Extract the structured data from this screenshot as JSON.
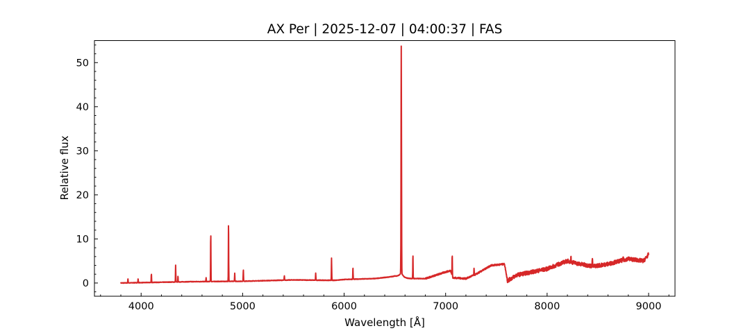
{
  "chart_data": {
    "type": "line",
    "title": "AX Per | 2025-12-07 | 04:00:37 | FAS",
    "xlabel": "Wavelength [Å]",
    "ylabel": "Relative flux",
    "xlim": [
      3540,
      9260
    ],
    "ylim": [
      -3,
      55
    ],
    "xticks": [
      4000,
      5000,
      6000,
      7000,
      8000,
      9000
    ],
    "yticks": [
      0,
      10,
      20,
      30,
      40,
      50
    ],
    "x_minor_step": 200,
    "y_minor_step": 2,
    "grid": false,
    "legend": "none",
    "series": [
      {
        "name": "spectrum",
        "color": "#d62728",
        "continuum": [
          [
            3800,
            0
          ],
          [
            4500,
            0.3
          ],
          [
            5000,
            0.4
          ],
          [
            5500,
            0.7
          ],
          [
            5900,
            0.6
          ],
          [
            6000,
            0.8
          ],
          [
            6300,
            1.0
          ],
          [
            6500,
            1.5
          ],
          [
            6600,
            1.0
          ],
          [
            6800,
            1.0
          ],
          [
            7000,
            2.5
          ],
          [
            7050,
            2.8
          ],
          [
            7070,
            1.2
          ],
          [
            7200,
            1.0
          ],
          [
            7300,
            2.0
          ],
          [
            7450,
            4.0
          ],
          [
            7580,
            4.3
          ],
          [
            7610,
            0.5
          ],
          [
            7700,
            1.8
          ],
          [
            8000,
            3.2
          ],
          [
            8150,
            4.6
          ],
          [
            8200,
            5.0
          ],
          [
            8300,
            4.4
          ],
          [
            8450,
            3.8
          ],
          [
            8600,
            4.3
          ],
          [
            8800,
            5.5
          ],
          [
            8950,
            5.0
          ],
          [
            9000,
            6.5
          ]
        ],
        "emission_lines": [
          [
            3870,
            1.0
          ],
          [
            3970,
            1.0
          ],
          [
            4101,
            2.0
          ],
          [
            4340,
            4.0
          ],
          [
            4363,
            1.5
          ],
          [
            4640,
            1.2
          ],
          [
            4686,
            11.2
          ],
          [
            4861,
            13.6
          ],
          [
            4922,
            2.2
          ],
          [
            5007,
            3.1
          ],
          [
            5411,
            1.6
          ],
          [
            5720,
            2.3
          ],
          [
            5876,
            5.6
          ],
          [
            6087,
            3.5
          ],
          [
            6563,
            52.5
          ],
          [
            6678,
            6.3
          ],
          [
            7065,
            6.4
          ],
          [
            7280,
            3.2
          ],
          [
            8446,
            5.8
          ],
          [
            8235,
            6.0
          ],
          [
            8750,
            6.0
          ]
        ]
      }
    ]
  }
}
